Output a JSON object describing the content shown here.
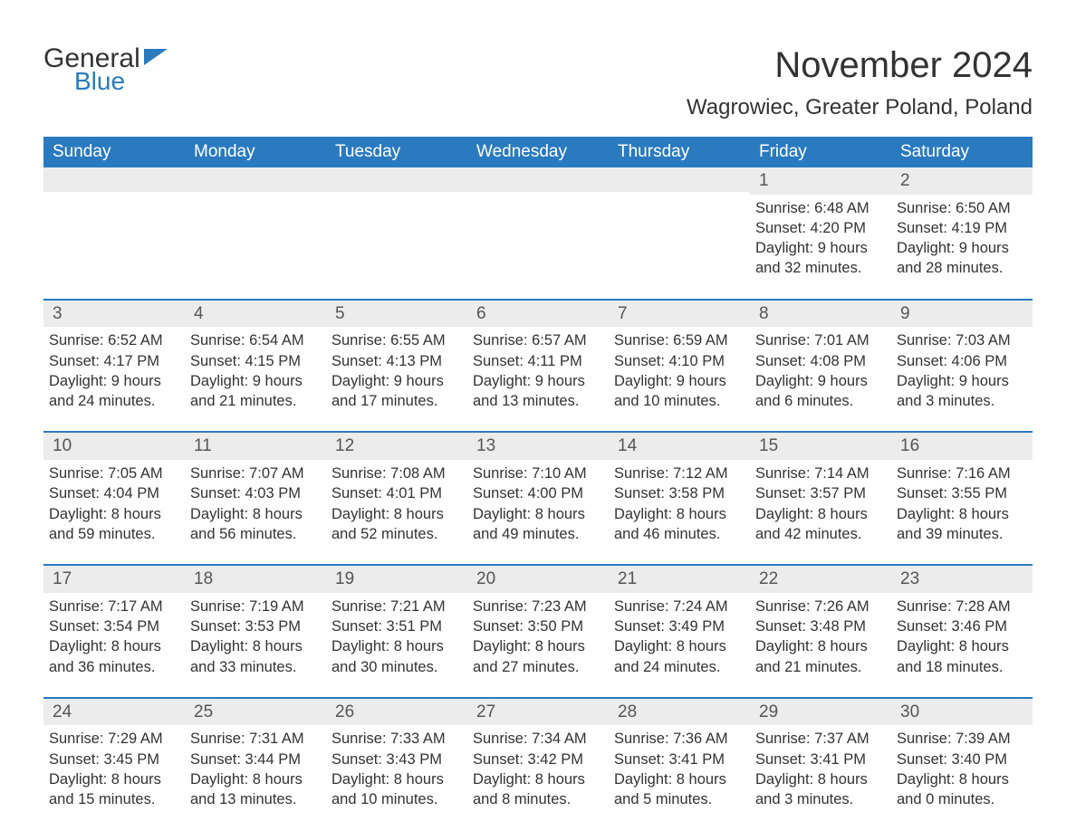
{
  "logo": {
    "text1": "General",
    "text2": "Blue"
  },
  "title": "November 2024",
  "location": "Wagrowiec, Greater Poland, Poland",
  "colors": {
    "header_bg": "#2a7ac0",
    "header_text": "#ffffff",
    "rule": "#2a7ac0",
    "daynum_bg": "#ececec",
    "body_text": "#333333",
    "page_bg": "#ffffff"
  },
  "typography": {
    "title_fontsize_pt": 30,
    "location_fontsize_pt": 18,
    "weekday_fontsize_pt": 14,
    "body_fontsize_pt": 12
  },
  "weekdays": [
    "Sunday",
    "Monday",
    "Tuesday",
    "Wednesday",
    "Thursday",
    "Friday",
    "Saturday"
  ],
  "weeks": [
    [
      {
        "day": "",
        "sunrise": "",
        "sunset": "",
        "daylight": ""
      },
      {
        "day": "",
        "sunrise": "",
        "sunset": "",
        "daylight": ""
      },
      {
        "day": "",
        "sunrise": "",
        "sunset": "",
        "daylight": ""
      },
      {
        "day": "",
        "sunrise": "",
        "sunset": "",
        "daylight": ""
      },
      {
        "day": "",
        "sunrise": "",
        "sunset": "",
        "daylight": ""
      },
      {
        "day": "1",
        "sunrise": "Sunrise: 6:48 AM",
        "sunset": "Sunset: 4:20 PM",
        "daylight": "Daylight: 9 hours and 32 minutes."
      },
      {
        "day": "2",
        "sunrise": "Sunrise: 6:50 AM",
        "sunset": "Sunset: 4:19 PM",
        "daylight": "Daylight: 9 hours and 28 minutes."
      }
    ],
    [
      {
        "day": "3",
        "sunrise": "Sunrise: 6:52 AM",
        "sunset": "Sunset: 4:17 PM",
        "daylight": "Daylight: 9 hours and 24 minutes."
      },
      {
        "day": "4",
        "sunrise": "Sunrise: 6:54 AM",
        "sunset": "Sunset: 4:15 PM",
        "daylight": "Daylight: 9 hours and 21 minutes."
      },
      {
        "day": "5",
        "sunrise": "Sunrise: 6:55 AM",
        "sunset": "Sunset: 4:13 PM",
        "daylight": "Daylight: 9 hours and 17 minutes."
      },
      {
        "day": "6",
        "sunrise": "Sunrise: 6:57 AM",
        "sunset": "Sunset: 4:11 PM",
        "daylight": "Daylight: 9 hours and 13 minutes."
      },
      {
        "day": "7",
        "sunrise": "Sunrise: 6:59 AM",
        "sunset": "Sunset: 4:10 PM",
        "daylight": "Daylight: 9 hours and 10 minutes."
      },
      {
        "day": "8",
        "sunrise": "Sunrise: 7:01 AM",
        "sunset": "Sunset: 4:08 PM",
        "daylight": "Daylight: 9 hours and 6 minutes."
      },
      {
        "day": "9",
        "sunrise": "Sunrise: 7:03 AM",
        "sunset": "Sunset: 4:06 PM",
        "daylight": "Daylight: 9 hours and 3 minutes."
      }
    ],
    [
      {
        "day": "10",
        "sunrise": "Sunrise: 7:05 AM",
        "sunset": "Sunset: 4:04 PM",
        "daylight": "Daylight: 8 hours and 59 minutes."
      },
      {
        "day": "11",
        "sunrise": "Sunrise: 7:07 AM",
        "sunset": "Sunset: 4:03 PM",
        "daylight": "Daylight: 8 hours and 56 minutes."
      },
      {
        "day": "12",
        "sunrise": "Sunrise: 7:08 AM",
        "sunset": "Sunset: 4:01 PM",
        "daylight": "Daylight: 8 hours and 52 minutes."
      },
      {
        "day": "13",
        "sunrise": "Sunrise: 7:10 AM",
        "sunset": "Sunset: 4:00 PM",
        "daylight": "Daylight: 8 hours and 49 minutes."
      },
      {
        "day": "14",
        "sunrise": "Sunrise: 7:12 AM",
        "sunset": "Sunset: 3:58 PM",
        "daylight": "Daylight: 8 hours and 46 minutes."
      },
      {
        "day": "15",
        "sunrise": "Sunrise: 7:14 AM",
        "sunset": "Sunset: 3:57 PM",
        "daylight": "Daylight: 8 hours and 42 minutes."
      },
      {
        "day": "16",
        "sunrise": "Sunrise: 7:16 AM",
        "sunset": "Sunset: 3:55 PM",
        "daylight": "Daylight: 8 hours and 39 minutes."
      }
    ],
    [
      {
        "day": "17",
        "sunrise": "Sunrise: 7:17 AM",
        "sunset": "Sunset: 3:54 PM",
        "daylight": "Daylight: 8 hours and 36 minutes."
      },
      {
        "day": "18",
        "sunrise": "Sunrise: 7:19 AM",
        "sunset": "Sunset: 3:53 PM",
        "daylight": "Daylight: 8 hours and 33 minutes."
      },
      {
        "day": "19",
        "sunrise": "Sunrise: 7:21 AM",
        "sunset": "Sunset: 3:51 PM",
        "daylight": "Daylight: 8 hours and 30 minutes."
      },
      {
        "day": "20",
        "sunrise": "Sunrise: 7:23 AM",
        "sunset": "Sunset: 3:50 PM",
        "daylight": "Daylight: 8 hours and 27 minutes."
      },
      {
        "day": "21",
        "sunrise": "Sunrise: 7:24 AM",
        "sunset": "Sunset: 3:49 PM",
        "daylight": "Daylight: 8 hours and 24 minutes."
      },
      {
        "day": "22",
        "sunrise": "Sunrise: 7:26 AM",
        "sunset": "Sunset: 3:48 PM",
        "daylight": "Daylight: 8 hours and 21 minutes."
      },
      {
        "day": "23",
        "sunrise": "Sunrise: 7:28 AM",
        "sunset": "Sunset: 3:46 PM",
        "daylight": "Daylight: 8 hours and 18 minutes."
      }
    ],
    [
      {
        "day": "24",
        "sunrise": "Sunrise: 7:29 AM",
        "sunset": "Sunset: 3:45 PM",
        "daylight": "Daylight: 8 hours and 15 minutes."
      },
      {
        "day": "25",
        "sunrise": "Sunrise: 7:31 AM",
        "sunset": "Sunset: 3:44 PM",
        "daylight": "Daylight: 8 hours and 13 minutes."
      },
      {
        "day": "26",
        "sunrise": "Sunrise: 7:33 AM",
        "sunset": "Sunset: 3:43 PM",
        "daylight": "Daylight: 8 hours and 10 minutes."
      },
      {
        "day": "27",
        "sunrise": "Sunrise: 7:34 AM",
        "sunset": "Sunset: 3:42 PM",
        "daylight": "Daylight: 8 hours and 8 minutes."
      },
      {
        "day": "28",
        "sunrise": "Sunrise: 7:36 AM",
        "sunset": "Sunset: 3:41 PM",
        "daylight": "Daylight: 8 hours and 5 minutes."
      },
      {
        "day": "29",
        "sunrise": "Sunrise: 7:37 AM",
        "sunset": "Sunset: 3:41 PM",
        "daylight": "Daylight: 8 hours and 3 minutes."
      },
      {
        "day": "30",
        "sunrise": "Sunrise: 7:39 AM",
        "sunset": "Sunset: 3:40 PM",
        "daylight": "Daylight: 8 hours and 0 minutes."
      }
    ]
  ]
}
